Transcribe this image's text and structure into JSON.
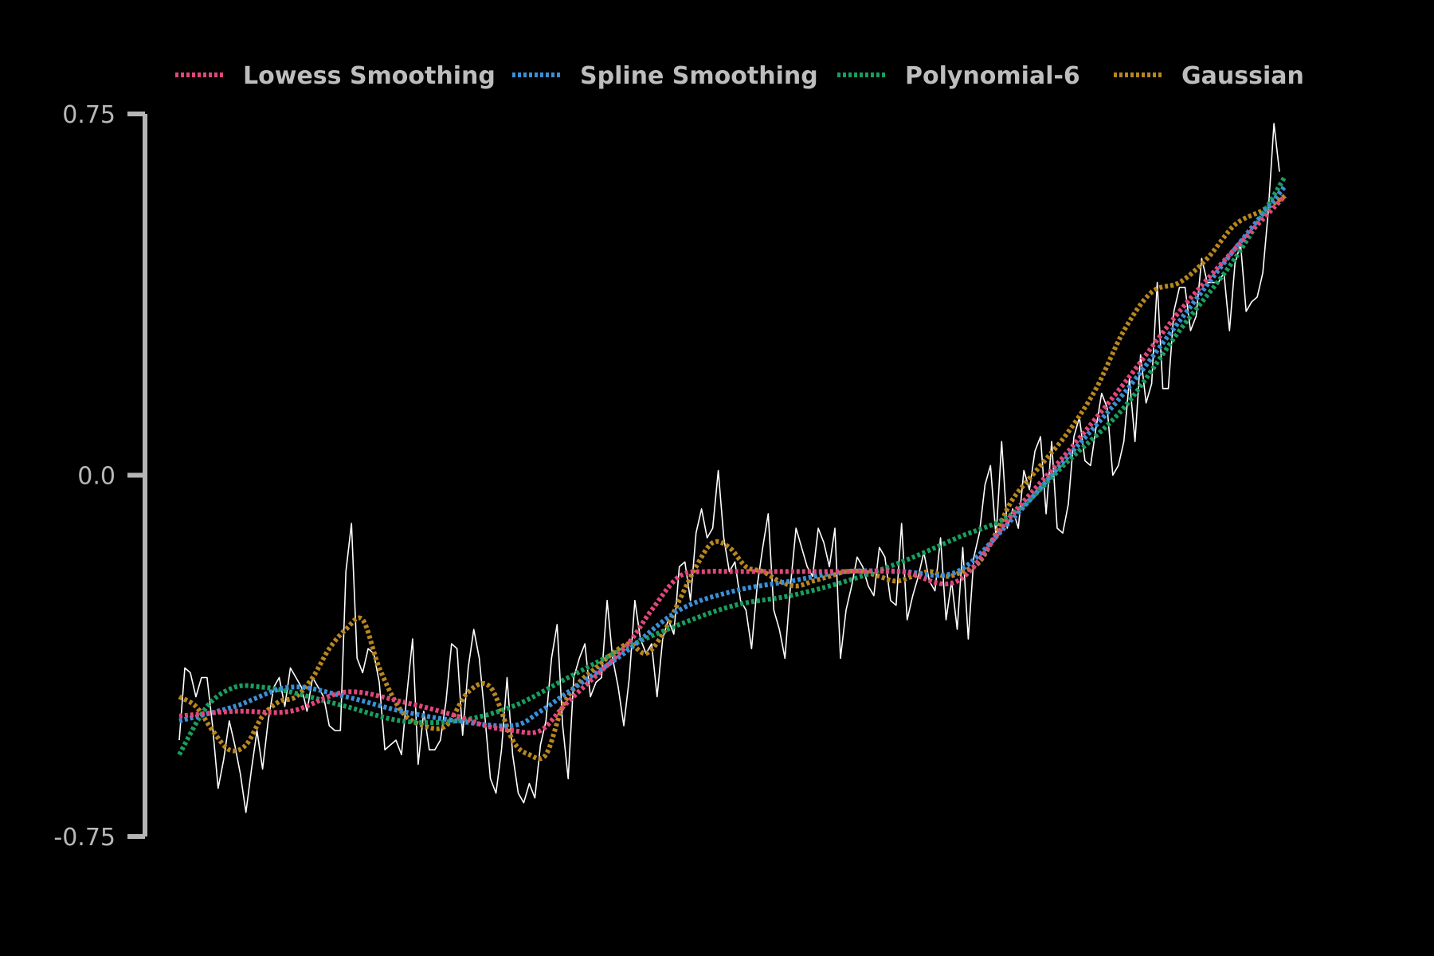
{
  "chart_data": {
    "type": "line",
    "title": "",
    "xlabel": "",
    "ylabel": "",
    "ylim": [
      -0.75,
      0.75
    ],
    "yticks": [
      "0.75",
      "0.0",
      "-0.75"
    ],
    "grid": false,
    "legend_position": "top",
    "x": [
      0,
      1,
      2,
      3,
      4,
      5,
      6,
      7,
      8,
      9,
      10,
      11,
      12,
      13,
      14,
      15,
      16,
      17,
      18,
      19,
      20,
      21,
      22,
      23,
      24,
      25,
      26,
      27,
      28,
      29,
      30,
      31,
      32,
      33,
      34,
      35,
      36,
      37,
      38,
      39,
      40,
      41,
      42,
      43,
      44,
      45,
      46,
      47,
      48,
      49,
      50,
      51,
      52,
      53,
      54,
      55,
      56,
      57,
      58,
      59,
      60,
      61,
      62,
      63,
      64,
      65,
      66,
      67,
      68,
      69,
      70,
      71,
      72,
      73,
      74,
      75,
      76,
      77,
      78,
      79,
      80,
      81,
      82,
      83,
      84,
      85,
      86,
      87,
      88,
      89,
      90,
      91,
      92,
      93,
      94,
      95,
      96,
      97,
      98,
      99,
      100,
      101,
      102,
      103,
      104,
      105,
      106,
      107,
      108,
      109,
      110,
      111,
      112,
      113,
      114,
      115,
      116,
      117,
      118,
      119,
      120,
      121,
      122,
      123,
      124,
      125,
      126,
      127,
      128,
      129,
      130,
      131,
      132,
      133,
      134,
      135,
      136,
      137,
      138,
      139,
      140,
      141,
      142,
      143,
      144,
      145,
      146,
      147,
      148,
      149,
      150,
      151,
      152,
      153,
      154,
      155,
      156,
      157,
      158,
      159,
      160,
      161,
      162,
      163,
      164,
      165,
      166,
      167,
      168,
      169,
      170,
      171,
      172,
      173,
      174,
      175,
      176,
      177,
      178,
      179,
      180,
      181,
      182,
      183,
      184,
      185,
      186,
      187,
      188,
      189,
      190,
      191,
      192,
      193,
      194,
      195,
      196,
      197,
      198,
      199
    ],
    "raw": [
      -0.55,
      -0.4,
      -0.41,
      -0.46,
      -0.42,
      -0.42,
      -0.52,
      -0.65,
      -0.59,
      -0.51,
      -0.56,
      -0.62,
      -0.7,
      -0.61,
      -0.53,
      -0.61,
      -0.51,
      -0.44,
      -0.42,
      -0.48,
      -0.4,
      -0.42,
      -0.44,
      -0.49,
      -0.42,
      -0.44,
      -0.46,
      -0.52,
      -0.53,
      -0.53,
      -0.2,
      -0.1,
      -0.38,
      -0.41,
      -0.36,
      -0.37,
      -0.43,
      -0.57,
      -0.56,
      -0.55,
      -0.58,
      -0.45,
      -0.34,
      -0.6,
      -0.49,
      -0.57,
      -0.57,
      -0.55,
      -0.47,
      -0.35,
      -0.36,
      -0.54,
      -0.4,
      -0.32,
      -0.38,
      -0.5,
      -0.63,
      -0.66,
      -0.57,
      -0.42,
      -0.58,
      -0.66,
      -0.68,
      -0.64,
      -0.67,
      -0.56,
      -0.51,
      -0.38,
      -0.31,
      -0.52,
      -0.63,
      -0.42,
      -0.38,
      -0.35,
      -0.46,
      -0.43,
      -0.42,
      -0.26,
      -0.38,
      -0.44,
      -0.52,
      -0.42,
      -0.26,
      -0.34,
      -0.37,
      -0.35,
      -0.46,
      -0.34,
      -0.3,
      -0.33,
      -0.19,
      -0.18,
      -0.26,
      -0.12,
      -0.07,
      -0.13,
      -0.11,
      0.01,
      -0.13,
      -0.2,
      -0.18,
      -0.26,
      -0.28,
      -0.36,
      -0.23,
      -0.15,
      -0.08,
      -0.28,
      -0.32,
      -0.38,
      -0.23,
      -0.11,
      -0.15,
      -0.19,
      -0.21,
      -0.11,
      -0.14,
      -0.19,
      -0.11,
      -0.38,
      -0.28,
      -0.23,
      -0.17,
      -0.19,
      -0.23,
      -0.25,
      -0.15,
      -0.17,
      -0.26,
      -0.27,
      -0.1,
      -0.3,
      -0.25,
      -0.21,
      -0.16,
      -0.22,
      -0.24,
      -0.13,
      -0.3,
      -0.22,
      -0.32,
      -0.15,
      -0.34,
      -0.17,
      -0.12,
      -0.02,
      0.02,
      -0.13,
      0.07,
      -0.11,
      -0.07,
      -0.11,
      0.01,
      -0.03,
      0.05,
      0.08,
      -0.08,
      0.07,
      -0.11,
      -0.12,
      -0.06,
      0.08,
      0.12,
      0.03,
      0.02,
      0.1,
      0.17,
      0.14,
      0.0,
      0.02,
      0.07,
      0.2,
      0.07,
      0.25,
      0.15,
      0.19,
      0.4,
      0.18,
      0.18,
      0.34,
      0.39,
      0.39,
      0.3,
      0.33,
      0.45,
      0.4,
      0.4,
      0.4,
      0.42,
      0.3,
      0.44,
      0.48,
      0.34,
      0.36,
      0.37,
      0.42,
      0.55,
      0.73,
      0.63
    ],
    "series": [
      {
        "name": "Lowess Smoothing",
        "color": "#e0477a",
        "x": [
          0,
          10,
          20,
          30,
          40,
          50,
          55,
          60,
          65,
          70,
          80,
          85,
          90,
          95,
          100,
          110,
          120,
          130,
          140,
          150,
          160,
          170,
          180,
          190,
          199
        ],
        "values": [
          -0.5,
          -0.49,
          -0.49,
          -0.45,
          -0.47,
          -0.5,
          -0.52,
          -0.53,
          -0.53,
          -0.47,
          -0.36,
          -0.28,
          -0.21,
          -0.2,
          -0.2,
          -0.2,
          -0.2,
          -0.2,
          -0.22,
          -0.08,
          0.05,
          0.19,
          0.34,
          0.47,
          0.58
        ]
      },
      {
        "name": "Spline Smoothing",
        "color": "#3b8fd6",
        "x": [
          0,
          10,
          20,
          30,
          40,
          50,
          60,
          65,
          70,
          80,
          90,
          100,
          110,
          120,
          130,
          140,
          150,
          160,
          170,
          180,
          190,
          199
        ],
        "values": [
          -0.51,
          -0.48,
          -0.44,
          -0.46,
          -0.49,
          -0.51,
          -0.52,
          -0.49,
          -0.45,
          -0.37,
          -0.28,
          -0.24,
          -0.22,
          -0.2,
          -0.2,
          -0.2,
          -0.09,
          0.04,
          0.17,
          0.32,
          0.47,
          0.6
        ]
      },
      {
        "name": "Polynomial-6",
        "color": "#1a9d5f",
        "x": [
          0,
          5,
          10,
          15,
          20,
          30,
          40,
          50,
          60,
          70,
          80,
          90,
          100,
          110,
          120,
          130,
          140,
          150,
          160,
          170,
          180,
          190,
          199
        ],
        "values": [
          -0.58,
          -0.48,
          -0.44,
          -0.44,
          -0.45,
          -0.48,
          -0.51,
          -0.51,
          -0.48,
          -0.42,
          -0.36,
          -0.31,
          -0.27,
          -0.25,
          -0.22,
          -0.18,
          -0.13,
          -0.08,
          0.03,
          0.14,
          0.3,
          0.45,
          0.62
        ]
      },
      {
        "name": "Gaussian",
        "color": "#b8861f",
        "x": [
          0,
          3,
          6,
          9,
          12,
          15,
          18,
          21,
          24,
          27,
          30,
          33,
          36,
          40,
          44,
          48,
          52,
          56,
          60,
          63,
          66,
          69,
          72,
          75,
          78,
          81,
          84,
          87,
          90,
          93,
          96,
          99,
          102,
          105,
          108,
          111,
          114,
          117,
          120,
          123,
          126,
          129,
          132,
          135,
          138,
          141,
          144,
          147,
          150,
          155,
          160,
          165,
          170,
          175,
          180,
          185,
          190,
          195,
          199
        ],
        "values": [
          -0.46,
          -0.48,
          -0.53,
          -0.57,
          -0.56,
          -0.5,
          -0.47,
          -0.46,
          -0.42,
          -0.36,
          -0.32,
          -0.3,
          -0.4,
          -0.49,
          -0.52,
          -0.52,
          -0.45,
          -0.44,
          -0.55,
          -0.58,
          -0.58,
          -0.48,
          -0.43,
          -0.4,
          -0.37,
          -0.35,
          -0.37,
          -0.33,
          -0.26,
          -0.19,
          -0.14,
          -0.15,
          -0.19,
          -0.2,
          -0.22,
          -0.23,
          -0.22,
          -0.21,
          -0.2,
          -0.2,
          -0.21,
          -0.22,
          -0.21,
          -0.2,
          -0.21,
          -0.2,
          -0.18,
          -0.12,
          -0.05,
          0.02,
          0.09,
          0.18,
          0.3,
          0.38,
          0.4,
          0.45,
          0.52,
          0.55,
          0.58
        ]
      }
    ]
  }
}
